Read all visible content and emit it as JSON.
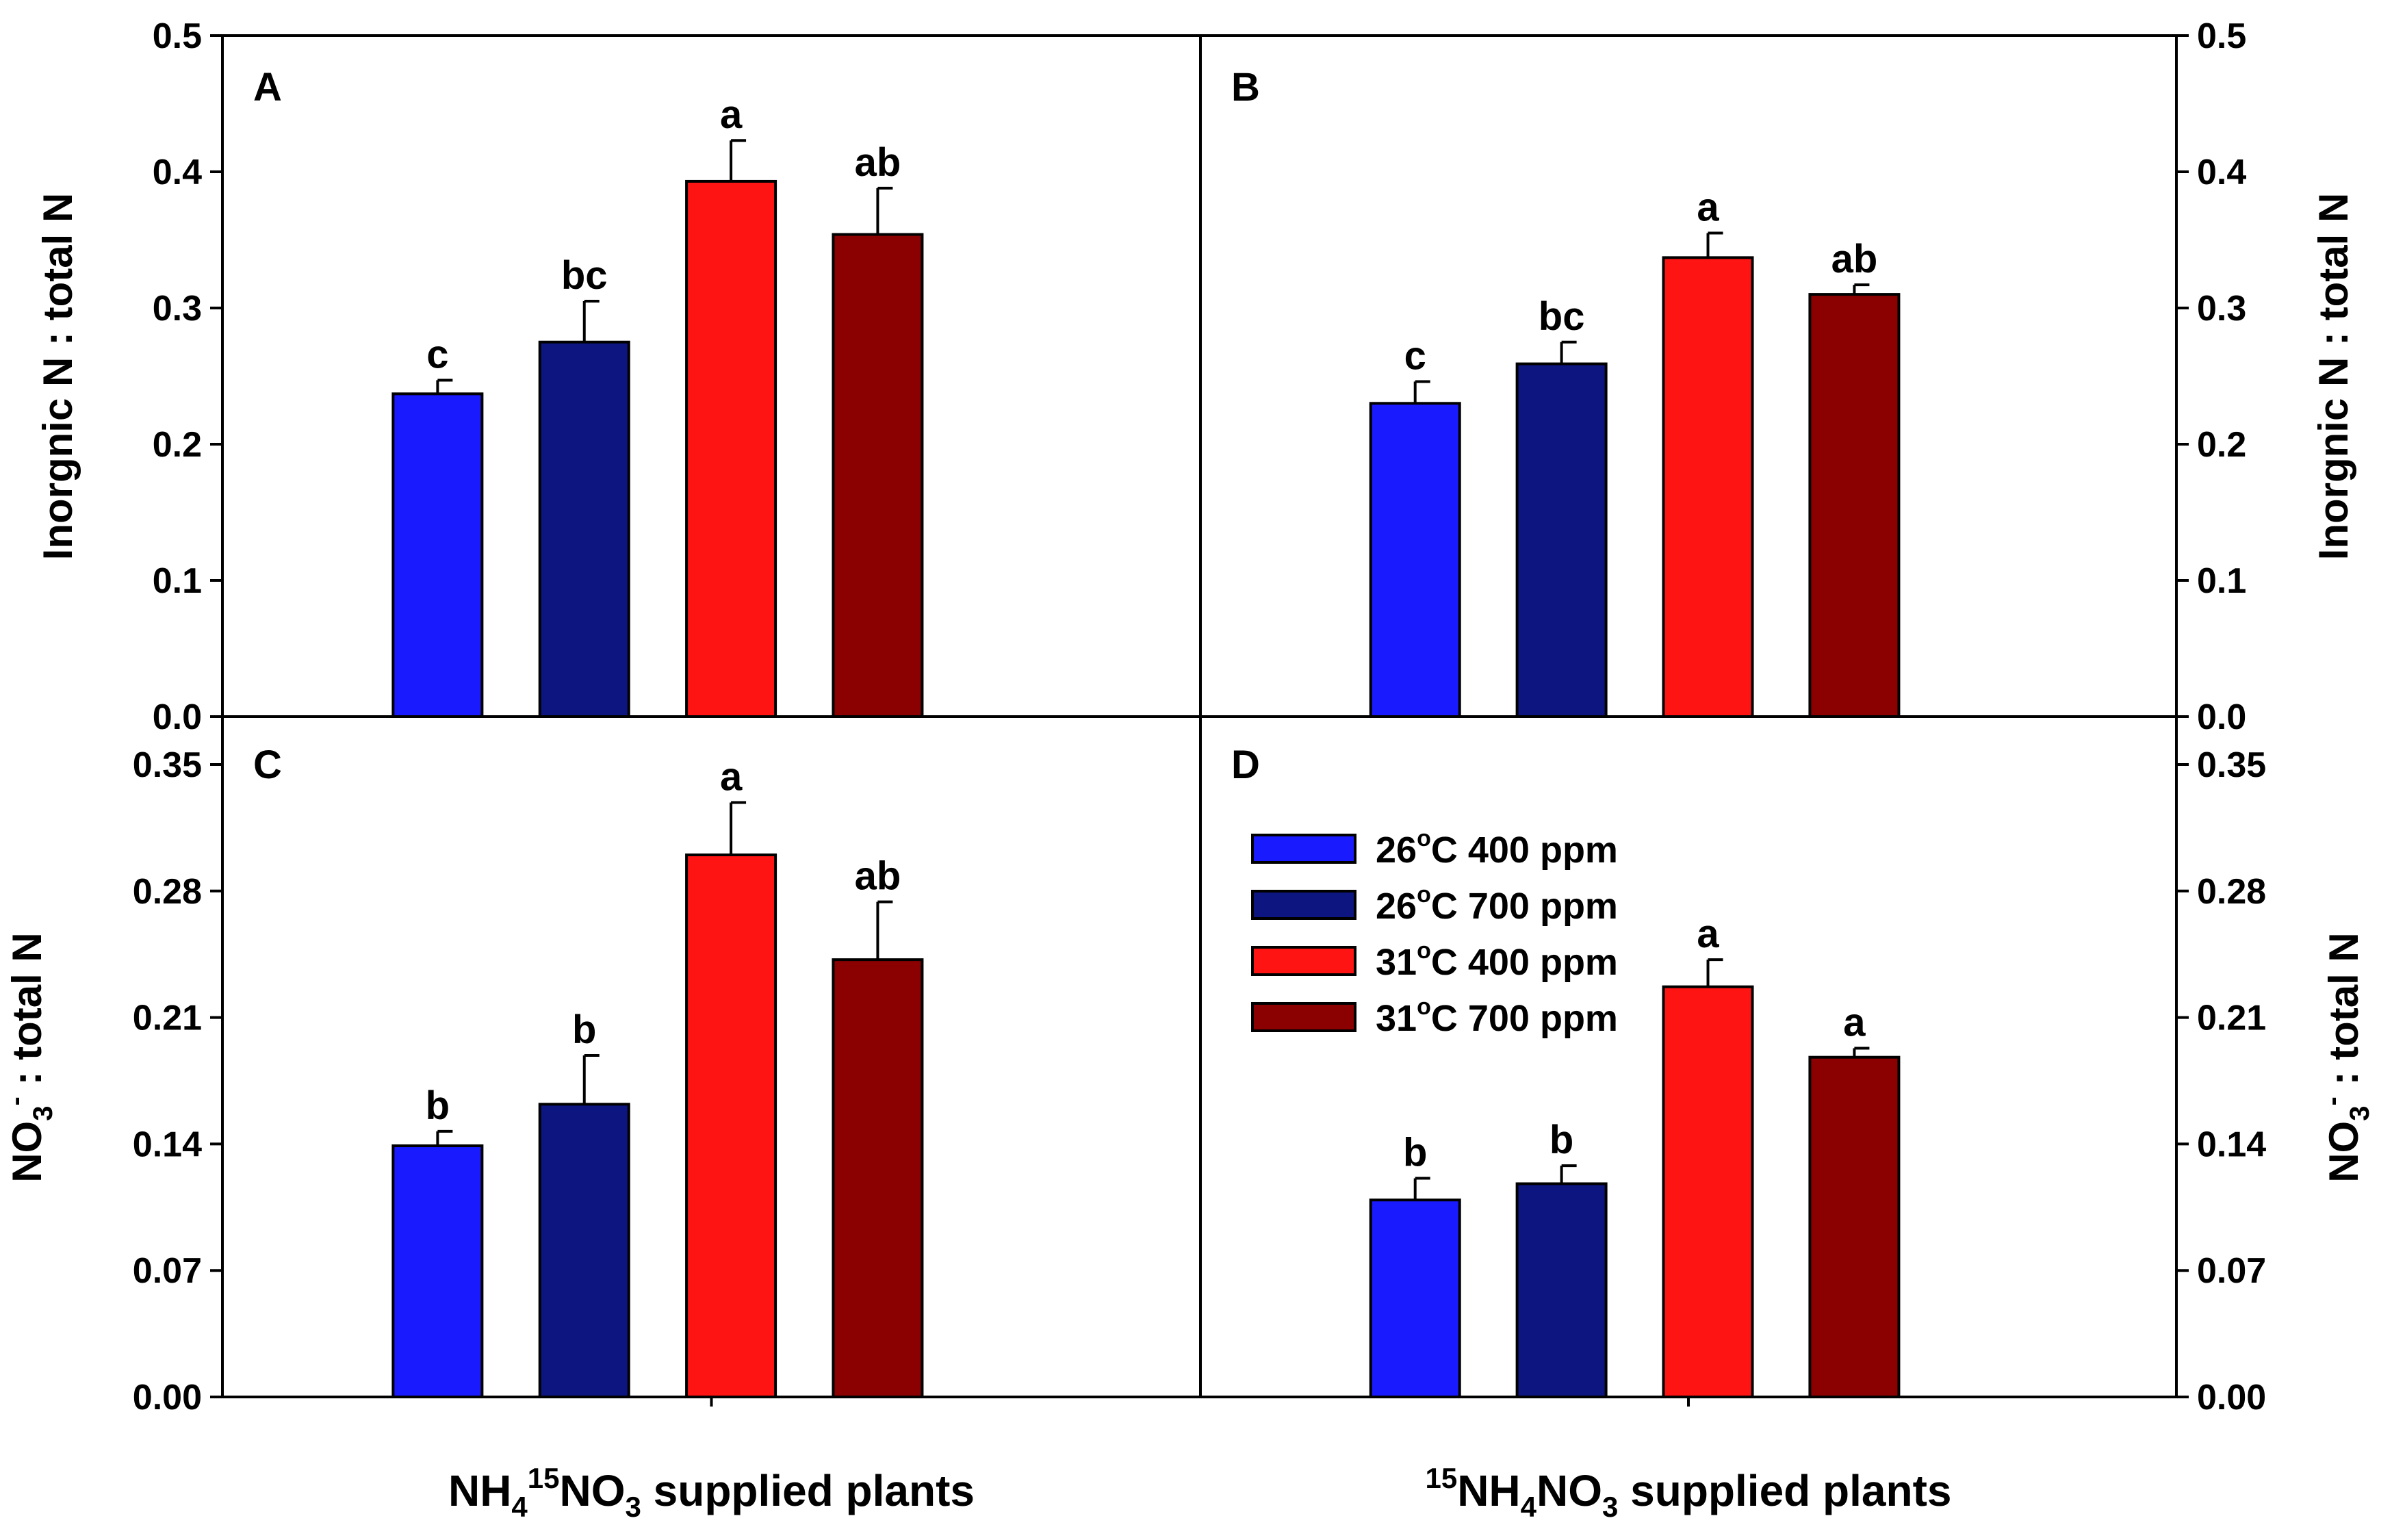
{
  "chart_data": {
    "type": "bar",
    "series_colors": {
      "26°C 400 ppm": "#1a1aff",
      "26°C 700 ppm": "#0d1580",
      "31°C 400 ppm": "#ff1414",
      "31°C 700 ppm": "#8b0000"
    },
    "legend": [
      {
        "temp": "26",
        "rest": "C 400 ppm",
        "color": "#1a1aff"
      },
      {
        "temp": "26",
        "rest": "C 700 ppm",
        "color": "#0d1580"
      },
      {
        "temp": "31",
        "rest": "C 400 ppm",
        "color": "#ff1414"
      },
      {
        "temp": "31",
        "rest": "C 700 ppm",
        "color": "#8b0000"
      }
    ],
    "degree_symbol": "o",
    "y_label_top": "Inorgnic N : total N",
    "y_label_bottom": {
      "main": "NO",
      "sub": "3",
      "sup": "-",
      "tail": " : total N"
    },
    "x_labels": [
      {
        "pre": "",
        "main": "NH",
        "sub1": "4",
        "sup": "15",
        "main2": "NO",
        "sub2": "3",
        "tail": " supplied plants"
      },
      {
        "pre": "",
        "sup": "15",
        "main": "NH",
        "sub1": "4",
        "main2": "NO",
        "sub2": "3",
        "tail": " supplied plants"
      }
    ],
    "top_axis": {
      "ylim": [
        0,
        0.5
      ],
      "ticks": [
        "0.0",
        "0.1",
        "0.2",
        "0.3",
        "0.4",
        "0.5"
      ],
      "tick_values": [
        0,
        0.1,
        0.2,
        0.3,
        0.4,
        0.5
      ]
    },
    "bottom_axis": {
      "ylim": [
        0,
        0.35
      ],
      "ticks": [
        "0.00",
        "0.07",
        "0.14",
        "0.21",
        "0.28",
        "0.35"
      ],
      "tick_values": [
        0,
        0.07,
        0.14,
        0.21,
        0.28,
        0.35
      ]
    },
    "panels": [
      {
        "id": "A",
        "values": [
          0.237,
          0.275,
          0.393,
          0.354
        ],
        "errors": [
          0.01,
          0.03,
          0.03,
          0.034
        ],
        "letters": [
          "c",
          "bc",
          "a",
          "ab"
        ]
      },
      {
        "id": "B",
        "values": [
          0.23,
          0.259,
          0.337,
          0.31
        ],
        "errors": [
          0.016,
          0.016,
          0.018,
          0.007
        ],
        "letters": [
          "c",
          "bc",
          "a",
          "ab"
        ]
      },
      {
        "id": "C",
        "values": [
          0.139,
          0.162,
          0.3,
          0.242
        ],
        "errors": [
          0.008,
          0.027,
          0.029,
          0.032
        ],
        "letters": [
          "b",
          "b",
          "a",
          "ab"
        ]
      },
      {
        "id": "D",
        "values": [
          0.109,
          0.118,
          0.227,
          0.188
        ],
        "errors": [
          0.012,
          0.01,
          0.015,
          0.005
        ],
        "letters": [
          "b",
          "b",
          "a",
          "a"
        ]
      }
    ]
  }
}
